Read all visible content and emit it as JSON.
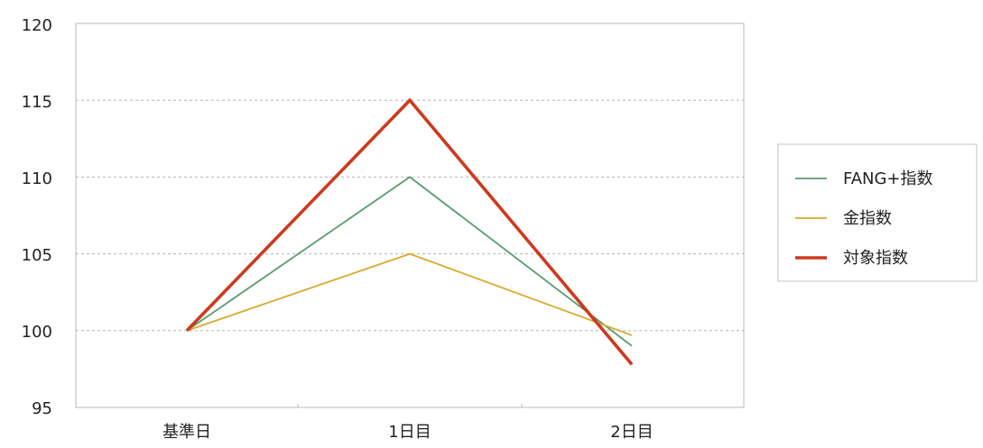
{
  "chart_data": {
    "type": "line",
    "categories": [
      "基準日",
      "1日目",
      "2日目"
    ],
    "series": [
      {
        "name": "FANG+指数",
        "values": [
          100,
          110,
          99
        ],
        "color": "#5b9b6e"
      },
      {
        "name": "金指数",
        "values": [
          100,
          105,
          99.7
        ],
        "color": "#d9a92b"
      },
      {
        "name": "対象指数",
        "values": [
          100,
          115,
          97.8
        ],
        "color": "#cc3a1e"
      }
    ],
    "yticks": [
      "120",
      "115",
      "110",
      "105",
      "100",
      "95"
    ],
    "ylim": [
      95,
      120
    ],
    "grid": "horizontal dotted",
    "legend": "right",
    "title": "",
    "xlabel": "",
    "ylabel": ""
  }
}
